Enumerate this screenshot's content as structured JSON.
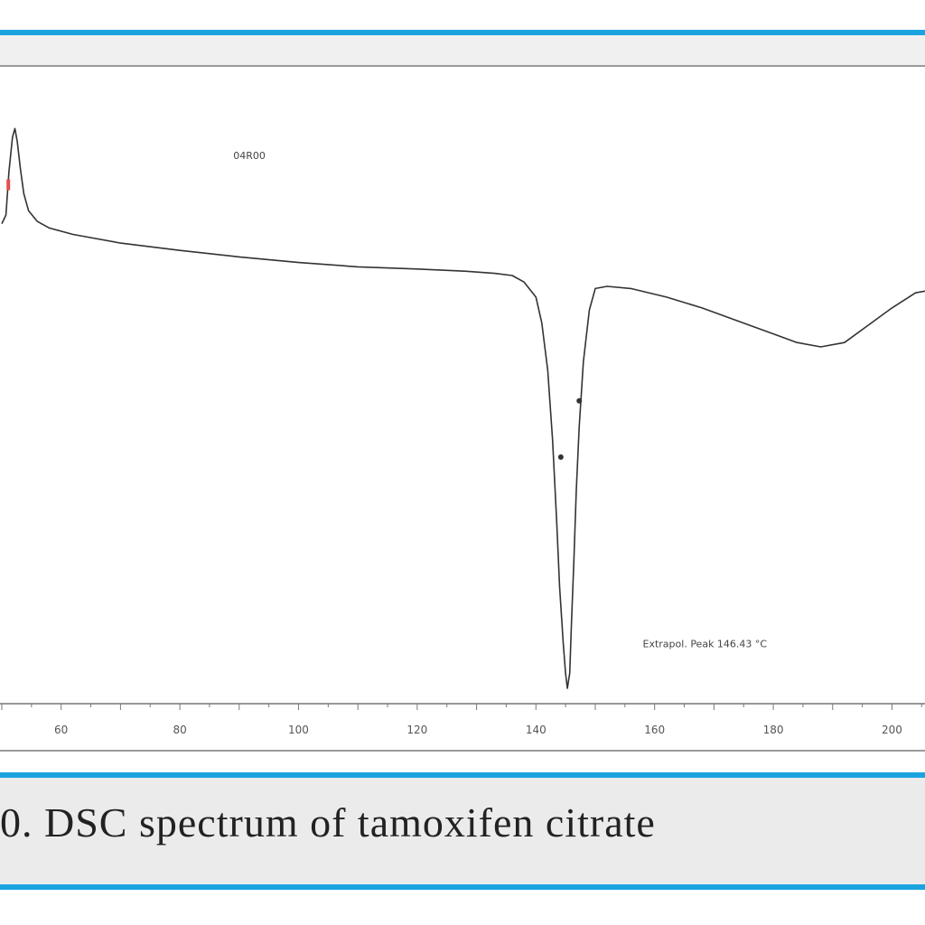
{
  "figure": {
    "caption": "0. DSC spectrum of tamoxifen citrate"
  },
  "chart_data": {
    "type": "line",
    "title": "",
    "xlabel": "",
    "ylabel": "",
    "xlim": [
      50,
      208
    ],
    "ylim": [
      -11,
      3
    ],
    "x_ticks": [
      60,
      80,
      100,
      120,
      140,
      160,
      180,
      200
    ],
    "x_tick_labels": [
      "60",
      "80",
      "100",
      "120",
      "140",
      "160",
      "180",
      "200"
    ],
    "series": [
      {
        "name": "",
        "color": "#333333",
        "x": [
          50,
          50.7,
          51.2,
          51.8,
          52.2,
          52.6,
          53.1,
          53.7,
          54.5,
          56,
          58,
          62,
          70,
          80,
          90,
          100,
          110,
          120,
          128,
          133,
          136,
          138,
          140,
          141,
          142,
          142.8,
          143.5,
          144,
          144.6,
          145.0,
          145.3,
          145.7,
          146.0,
          146.4,
          146.8,
          147.3,
          148,
          149,
          150,
          152,
          156,
          162,
          168,
          174,
          180,
          184,
          188,
          192,
          196,
          200,
          204,
          208
        ],
        "y": [
          0,
          0.2,
          1.2,
          2.0,
          2.2,
          1.9,
          1.3,
          0.7,
          0.3,
          0.05,
          -0.1,
          -0.25,
          -0.45,
          -0.62,
          -0.77,
          -0.9,
          -1.0,
          -1.05,
          -1.1,
          -1.15,
          -1.2,
          -1.35,
          -1.7,
          -2.3,
          -3.4,
          -5.0,
          -6.9,
          -8.4,
          -9.7,
          -10.4,
          -10.75,
          -10.4,
          -9.2,
          -7.8,
          -6.2,
          -4.7,
          -3.2,
          -2.0,
          -1.5,
          -1.45,
          -1.5,
          -1.7,
          -1.95,
          -2.25,
          -2.55,
          -2.75,
          -2.85,
          -2.75,
          -2.35,
          -1.95,
          -1.6,
          -1.5
        ]
      }
    ],
    "annotations": [
      {
        "text": "04R00",
        "x": 89,
        "y": 1.5
      },
      {
        "text": "Extrapol. Peak    146.43 °C",
        "x": 158,
        "y": -9.8
      }
    ],
    "markers": [
      {
        "x": 144.2,
        "y": -5.4,
        "color": "#333333"
      },
      {
        "x": 147.3,
        "y": -4.1,
        "color": "#333333"
      },
      {
        "x": 51.1,
        "y": 0.9,
        "color": "#e05050"
      }
    ],
    "grid": false,
    "legend": "none"
  }
}
